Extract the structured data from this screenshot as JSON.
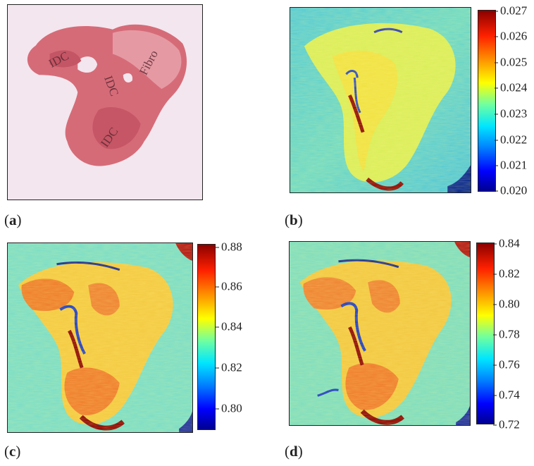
{
  "panels": [
    {
      "id": "a",
      "label": "a",
      "tissue_labels": [
        "IDC",
        "IDC",
        "IDC",
        "Fibro"
      ]
    },
    {
      "id": "b",
      "label": "b",
      "colorbar_ticks": [
        "0.027",
        "0.026",
        "0.025",
        "0.024",
        "0.023",
        "0.022",
        "0.021",
        "0.020"
      ]
    },
    {
      "id": "c",
      "label": "c",
      "colorbar_ticks": [
        "0.88",
        "0.86",
        "0.84",
        "0.82",
        "0.80"
      ]
    },
    {
      "id": "d",
      "label": "d",
      "colorbar_ticks": [
        "0.84",
        "0.82",
        "0.80",
        "0.78",
        "0.76",
        "0.74",
        "0.72"
      ]
    }
  ],
  "colors": {
    "stain": "#d96a78",
    "background_pink": "#f4e8ee",
    "map_base": "#6fd9c0",
    "map_high": "#e23a10"
  }
}
